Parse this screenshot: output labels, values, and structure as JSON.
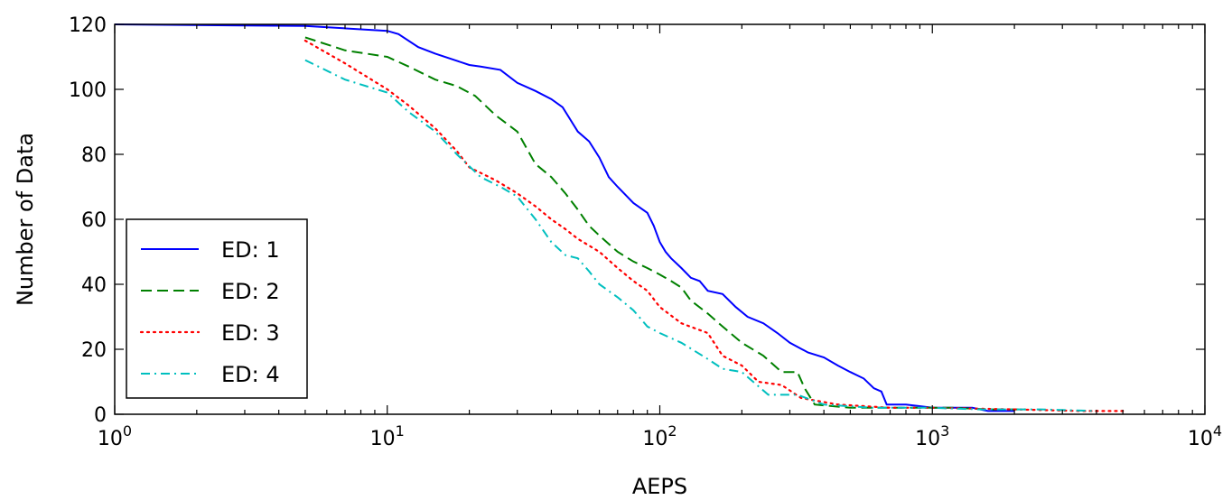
{
  "chart_data": {
    "type": "line",
    "title": "",
    "xlabel": "AEPS",
    "ylabel": "Number of Data",
    "x_scale": "log",
    "xlim": [
      1,
      10000
    ],
    "ylim": [
      0,
      120
    ],
    "x_ticks": [
      {
        "value": 1,
        "base": "10",
        "exp": "0"
      },
      {
        "value": 10,
        "base": "10",
        "exp": "1"
      },
      {
        "value": 100,
        "base": "10",
        "exp": "2"
      },
      {
        "value": 1000,
        "base": "10",
        "exp": "3"
      },
      {
        "value": 10000,
        "base": "10",
        "exp": "4"
      }
    ],
    "y_ticks": [
      0,
      20,
      40,
      60,
      80,
      100,
      120
    ],
    "y_tick_labels": [
      "0",
      "20",
      "40",
      "60",
      "80",
      "100",
      "120"
    ],
    "grid": false,
    "legend_position": "lower-left",
    "series": [
      {
        "name": "ED: 1",
        "color": "#0000ff",
        "dash": "solid",
        "points": [
          [
            1,
            120
          ],
          [
            5,
            119.5
          ],
          [
            10,
            118
          ],
          [
            11,
            117
          ],
          [
            13,
            113
          ],
          [
            15,
            111
          ],
          [
            20,
            107.5
          ],
          [
            22,
            107
          ],
          [
            26,
            106
          ],
          [
            30,
            102
          ],
          [
            35,
            99.5
          ],
          [
            40,
            97
          ],
          [
            44,
            94.5
          ],
          [
            50,
            87
          ],
          [
            55,
            84
          ],
          [
            60,
            79
          ],
          [
            65,
            73
          ],
          [
            70,
            70
          ],
          [
            80,
            65
          ],
          [
            90,
            62
          ],
          [
            95,
            58
          ],
          [
            100,
            53
          ],
          [
            105,
            50
          ],
          [
            110,
            48
          ],
          [
            120,
            45
          ],
          [
            130,
            42
          ],
          [
            140,
            41
          ],
          [
            150,
            38
          ],
          [
            170,
            37
          ],
          [
            190,
            33
          ],
          [
            210,
            30
          ],
          [
            240,
            28
          ],
          [
            270,
            25
          ],
          [
            300,
            22
          ],
          [
            350,
            19
          ],
          [
            400,
            17.5
          ],
          [
            450,
            15
          ],
          [
            500,
            13
          ],
          [
            560,
            11
          ],
          [
            610,
            8
          ],
          [
            650,
            7
          ],
          [
            680,
            3
          ],
          [
            800,
            3
          ],
          [
            1000,
            2
          ],
          [
            1400,
            2
          ],
          [
            1600,
            1
          ],
          [
            2000,
            1
          ]
        ]
      },
      {
        "name": "ED: 2",
        "color": "#008000",
        "dash": "dashed",
        "points": [
          [
            5,
            116
          ],
          [
            7,
            112
          ],
          [
            10,
            110
          ],
          [
            12,
            107
          ],
          [
            15,
            103
          ],
          [
            18,
            101
          ],
          [
            21,
            98
          ],
          [
            25,
            92
          ],
          [
            30,
            87
          ],
          [
            35,
            77
          ],
          [
            40,
            73
          ],
          [
            45,
            68
          ],
          [
            50,
            63
          ],
          [
            55,
            58
          ],
          [
            60,
            55
          ],
          [
            70,
            50
          ],
          [
            80,
            47
          ],
          [
            90,
            45
          ],
          [
            100,
            43
          ],
          [
            110,
            41
          ],
          [
            120,
            39
          ],
          [
            130,
            35
          ],
          [
            150,
            31
          ],
          [
            170,
            27
          ],
          [
            200,
            22
          ],
          [
            240,
            18
          ],
          [
            280,
            13
          ],
          [
            320,
            13
          ],
          [
            340,
            8
          ],
          [
            370,
            3
          ],
          [
            500,
            2
          ],
          [
            800,
            2
          ],
          [
            1200,
            2
          ],
          [
            1600,
            1.5
          ],
          [
            2200,
            1.5
          ]
        ]
      },
      {
        "name": "ED: 3",
        "color": "#ff0000",
        "dash": "dotted",
        "points": [
          [
            5,
            115
          ],
          [
            7,
            108
          ],
          [
            10,
            100
          ],
          [
            12,
            95
          ],
          [
            15,
            88
          ],
          [
            18,
            81
          ],
          [
            20,
            76
          ],
          [
            25,
            72
          ],
          [
            30,
            68
          ],
          [
            35,
            64
          ],
          [
            40,
            60
          ],
          [
            45,
            57
          ],
          [
            50,
            54
          ],
          [
            60,
            50
          ],
          [
            70,
            45
          ],
          [
            80,
            41
          ],
          [
            90,
            38
          ],
          [
            100,
            33
          ],
          [
            120,
            28
          ],
          [
            150,
            25
          ],
          [
            170,
            18
          ],
          [
            200,
            15
          ],
          [
            230,
            10
          ],
          [
            280,
            9
          ],
          [
            330,
            5
          ],
          [
            450,
            3
          ],
          [
            700,
            2
          ],
          [
            1000,
            2
          ],
          [
            2000,
            1.5
          ],
          [
            3500,
            1
          ],
          [
            5000,
            1
          ]
        ]
      },
      {
        "name": "ED: 4",
        "color": "#00bfbf",
        "dash": "dashdot",
        "points": [
          [
            5,
            109
          ],
          [
            7,
            103
          ],
          [
            10,
            99
          ],
          [
            12,
            93
          ],
          [
            15,
            87
          ],
          [
            18,
            80
          ],
          [
            22,
            73
          ],
          [
            26,
            70
          ],
          [
            30,
            67
          ],
          [
            35,
            60
          ],
          [
            40,
            53
          ],
          [
            45,
            49
          ],
          [
            50,
            48
          ],
          [
            55,
            44
          ],
          [
            60,
            40
          ],
          [
            70,
            36
          ],
          [
            80,
            32
          ],
          [
            90,
            27
          ],
          [
            100,
            25
          ],
          [
            120,
            22
          ],
          [
            150,
            17
          ],
          [
            170,
            14
          ],
          [
            200,
            13
          ],
          [
            250,
            6
          ],
          [
            320,
            6
          ],
          [
            400,
            3
          ],
          [
            600,
            2
          ],
          [
            1000,
            2
          ],
          [
            1500,
            1.5
          ],
          [
            2500,
            1.5
          ],
          [
            4000,
            1
          ]
        ]
      }
    ]
  }
}
